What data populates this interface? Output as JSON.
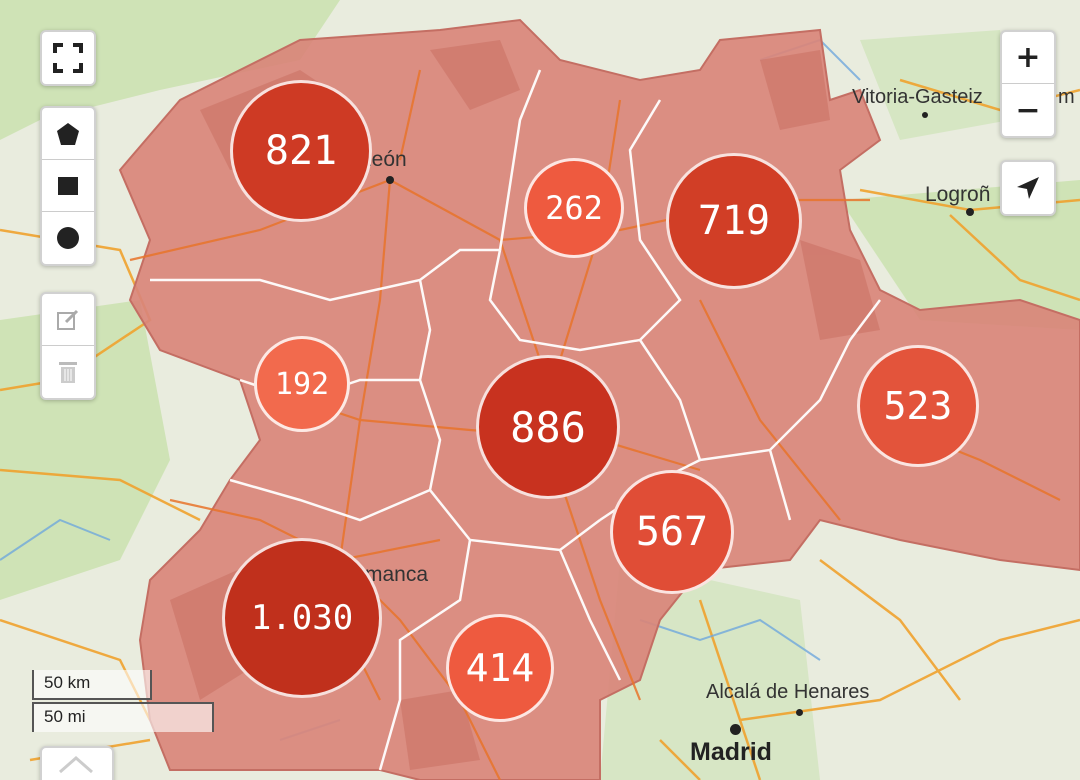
{
  "controls": {
    "fullscreen_icon": "fullscreen-icon",
    "draw_tools": [
      "polygon-icon",
      "rectangle-icon",
      "circle-icon"
    ],
    "edit_tools": [
      "edit-icon",
      "trash-icon"
    ],
    "zoom_in_label": "+",
    "zoom_out_label": "−"
  },
  "places": {
    "leon": "León",
    "vitoria": "Vitoria-Gasteiz",
    "m": "m",
    "logrono": "Logroñ",
    "salamanca": "manca",
    "alcala": "Alcalá de Henares",
    "madrid": "Madrid"
  },
  "clusters": [
    {
      "label": "821",
      "value": 821
    },
    {
      "label": "262",
      "value": 262
    },
    {
      "label": "719",
      "value": 719
    },
    {
      "label": "192",
      "value": 192
    },
    {
      "label": "886",
      "value": 886
    },
    {
      "label": "523",
      "value": 523
    },
    {
      "label": "567",
      "value": 567
    },
    {
      "label": "1.030",
      "value": 1030
    },
    {
      "label": "414",
      "value": 414
    }
  ],
  "scale": {
    "km": "50 km",
    "mi": "50 mi"
  },
  "colors": {
    "region_fill": "#d9857a",
    "cluster_high": "#c6301c",
    "cluster_mid": "#e0513b",
    "cluster_low": "#f06a4f"
  }
}
